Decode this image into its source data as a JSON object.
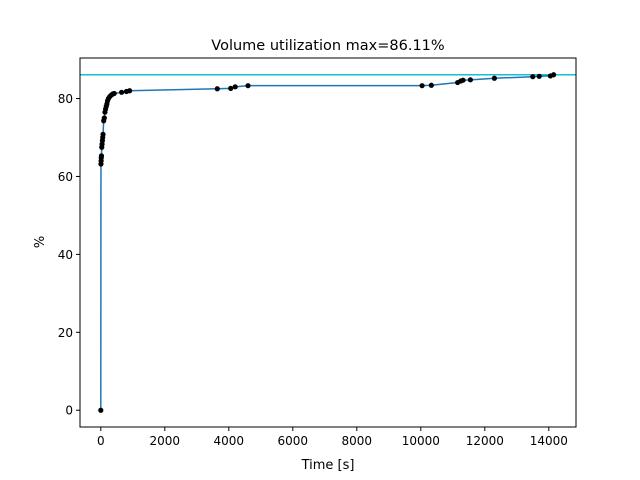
{
  "chart_data": {
    "type": "line",
    "title": "Volume utilization max=86.11%",
    "xlabel": "Time [s]",
    "ylabel": "%",
    "xlim": [
      -650,
      14850
    ],
    "ylim": [
      -4.3,
      90.4
    ],
    "xticks": [
      0,
      2000,
      4000,
      6000,
      8000,
      10000,
      12000,
      14000
    ],
    "yticks": [
      0,
      20,
      40,
      60,
      80
    ],
    "grid": false,
    "line_color": "#1f77b4",
    "marker_color": "#000000",
    "reference_color": "#17becf",
    "reference_value": 86.11,
    "series": [
      {
        "points": [
          [
            0,
            0
          ],
          [
            5,
            63.2
          ],
          [
            10,
            64.0
          ],
          [
            15,
            64.8
          ],
          [
            20,
            65.3
          ],
          [
            30,
            67.5
          ],
          [
            40,
            68.3
          ],
          [
            50,
            69.2
          ],
          [
            60,
            70.0
          ],
          [
            70,
            70.8
          ],
          [
            90,
            74.3
          ],
          [
            110,
            75.0
          ],
          [
            130,
            76.5
          ],
          [
            150,
            77.3
          ],
          [
            170,
            78.0
          ],
          [
            190,
            78.6
          ],
          [
            210,
            79.4
          ],
          [
            240,
            80.0
          ],
          [
            280,
            80.5
          ],
          [
            330,
            80.9
          ],
          [
            380,
            81.2
          ],
          [
            420,
            81.3
          ],
          [
            650,
            81.6
          ],
          [
            800,
            81.8
          ],
          [
            900,
            82.0
          ],
          [
            3640,
            82.5
          ],
          [
            4060,
            82.6
          ],
          [
            4200,
            83.0
          ],
          [
            4600,
            83.3
          ],
          [
            10040,
            83.3
          ],
          [
            10330,
            83.4
          ],
          [
            11150,
            84.1
          ],
          [
            11250,
            84.5
          ],
          [
            11320,
            84.7
          ],
          [
            11550,
            84.8
          ],
          [
            12300,
            85.2
          ],
          [
            13500,
            85.6
          ],
          [
            13700,
            85.7
          ],
          [
            14050,
            85.8
          ],
          [
            14150,
            86.1
          ]
        ]
      }
    ]
  }
}
